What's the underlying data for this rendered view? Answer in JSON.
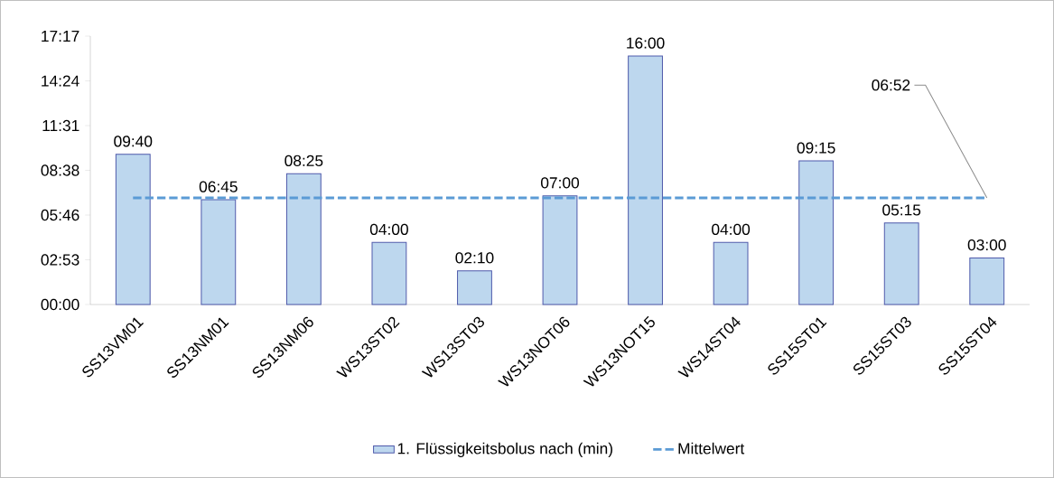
{
  "chart_data": {
    "type": "bar",
    "categories": [
      "SS13VM01",
      "SS13NM01",
      "SS13NM06",
      "WS13ST02",
      "WS13ST03",
      "WS13NOT06",
      "WS13NOT15",
      "WS14ST04",
      "SS15ST01",
      "SS15ST03",
      "SS15ST04"
    ],
    "series": [
      {
        "name": "1. Flüssigkeitsbolus nach (min)",
        "color": "#bdd7ee",
        "values": [
          9.67,
          6.75,
          8.42,
          4,
          2.17,
          7,
          16,
          4,
          9.25,
          5.25,
          3
        ],
        "value_labels": [
          "09:40",
          "06:45",
          "08:25",
          "04:00",
          "02:10",
          "07:00",
          "16:00",
          "04:00",
          "09:15",
          "05:15",
          "03:00"
        ]
      },
      {
        "name": "Mittelwert",
        "type": "line",
        "color": "#5b9bd5",
        "line_style": "dashed",
        "values": [
          6.87,
          6.87,
          6.87,
          6.87,
          6.87,
          6.87,
          6.87,
          6.87,
          6.87,
          6.87,
          6.87
        ],
        "value_labels": [
          null,
          null,
          null,
          null,
          null,
          null,
          null,
          null,
          null,
          null,
          "06:52"
        ]
      }
    ],
    "ylim": [
      0,
      17.28
    ],
    "yticks": [
      {
        "value": 0,
        "label": "00:00"
      },
      {
        "value": 2.88,
        "label": "02:53"
      },
      {
        "value": 5.76,
        "label": "05:46"
      },
      {
        "value": 8.64,
        "label": "08:38"
      },
      {
        "value": 11.52,
        "label": "11:31"
      },
      {
        "value": 14.4,
        "label": "14:24"
      },
      {
        "value": 17.28,
        "label": "17:17"
      }
    ],
    "legend": "bottom",
    "grid": false
  }
}
